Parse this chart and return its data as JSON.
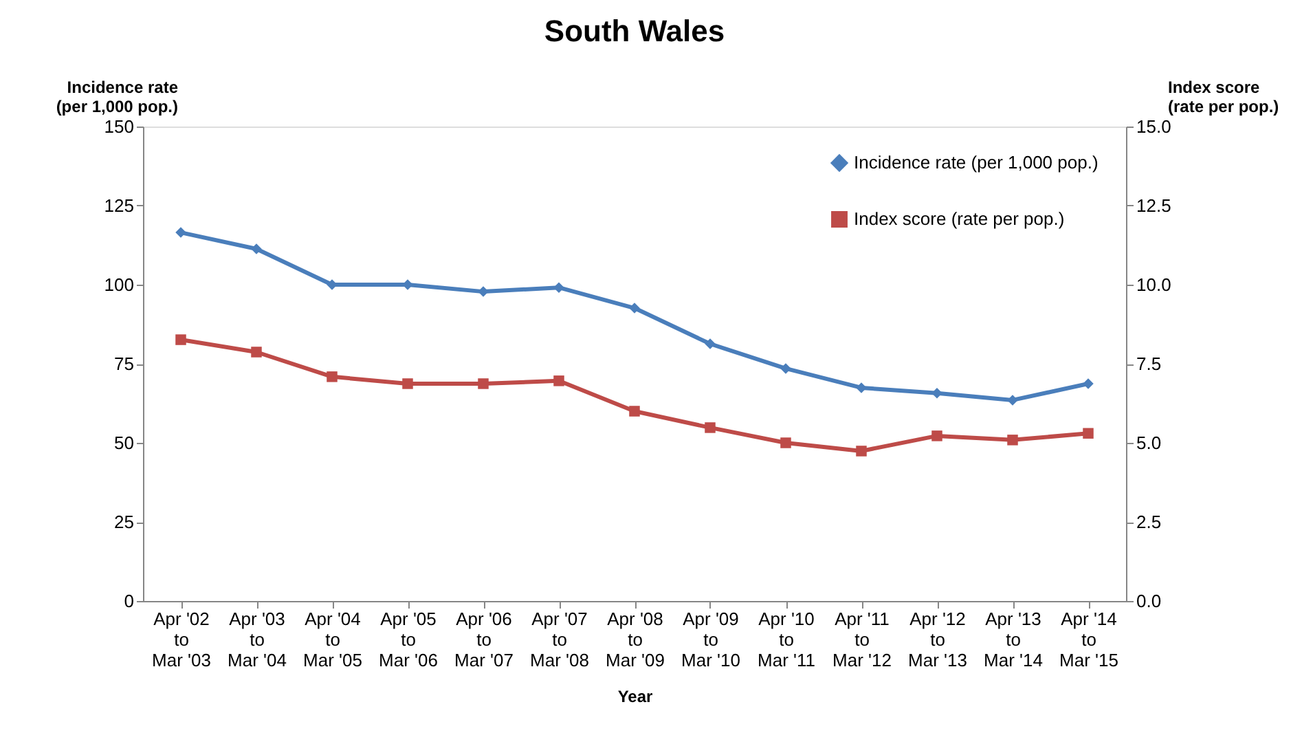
{
  "chart_data": {
    "type": "line",
    "title": "South Wales",
    "xlabel": "Year",
    "ylabel": "Incidence rate\n(per 1,000 pop.)",
    "y2label": "Index score\n(rate per pop.)",
    "categories": [
      "Apr '02\nto\nMar '03",
      "Apr '03\nto\nMar '04",
      "Apr '04\nto\nMar '05",
      "Apr '05\nto\nMar '06",
      "Apr '06\nto\nMar '07",
      "Apr '07\nto\nMar '08",
      "Apr '08\nto\nMar '09",
      "Apr '09\nto\nMar '10",
      "Apr '10\nto\nMar '11",
      "Apr '11\nto\nMar '12",
      "Apr '12\nto\nMar '13",
      "Apr '13\nto\nMar '14",
      "Apr '14\nto\nMar '15"
    ],
    "series": [
      {
        "name": "Incidence rate (per 1,000 pop.)",
        "color": "#4a7ebb",
        "marker": "diamond",
        "values": [
          116.5,
          111.3,
          100,
          100,
          97.8,
          99.1,
          92.6,
          81.3,
          73.5,
          67.4,
          65.7,
          63.5,
          68.7
        ]
      },
      {
        "name": "Index score (rate per pop.)",
        "color": "#be4b48",
        "marker": "square",
        "axis": "y2",
        "values": [
          8.26,
          7.87,
          7.09,
          6.87,
          6.87,
          6.96,
          6.0,
          5.48,
          5.0,
          4.74,
          5.22,
          5.09,
          5.3
        ]
      }
    ],
    "ylim": [
      0,
      150
    ],
    "yticks": [
      0,
      25,
      50,
      75,
      100,
      125,
      150
    ],
    "y2lim": [
      0,
      15
    ],
    "y2ticks": [
      {
        "value": 0,
        "label": "0.0"
      },
      {
        "value": 2.5,
        "label": "2.5"
      },
      {
        "value": 5,
        "label": "5.0"
      },
      {
        "value": 7.5,
        "label": "7.5"
      },
      {
        "value": 10,
        "label": "10.0"
      },
      {
        "value": 12.5,
        "label": "12.5"
      },
      {
        "value": 15,
        "label": "15.0"
      }
    ],
    "grid": false,
    "legend": "top right",
    "line_style": "solid"
  }
}
